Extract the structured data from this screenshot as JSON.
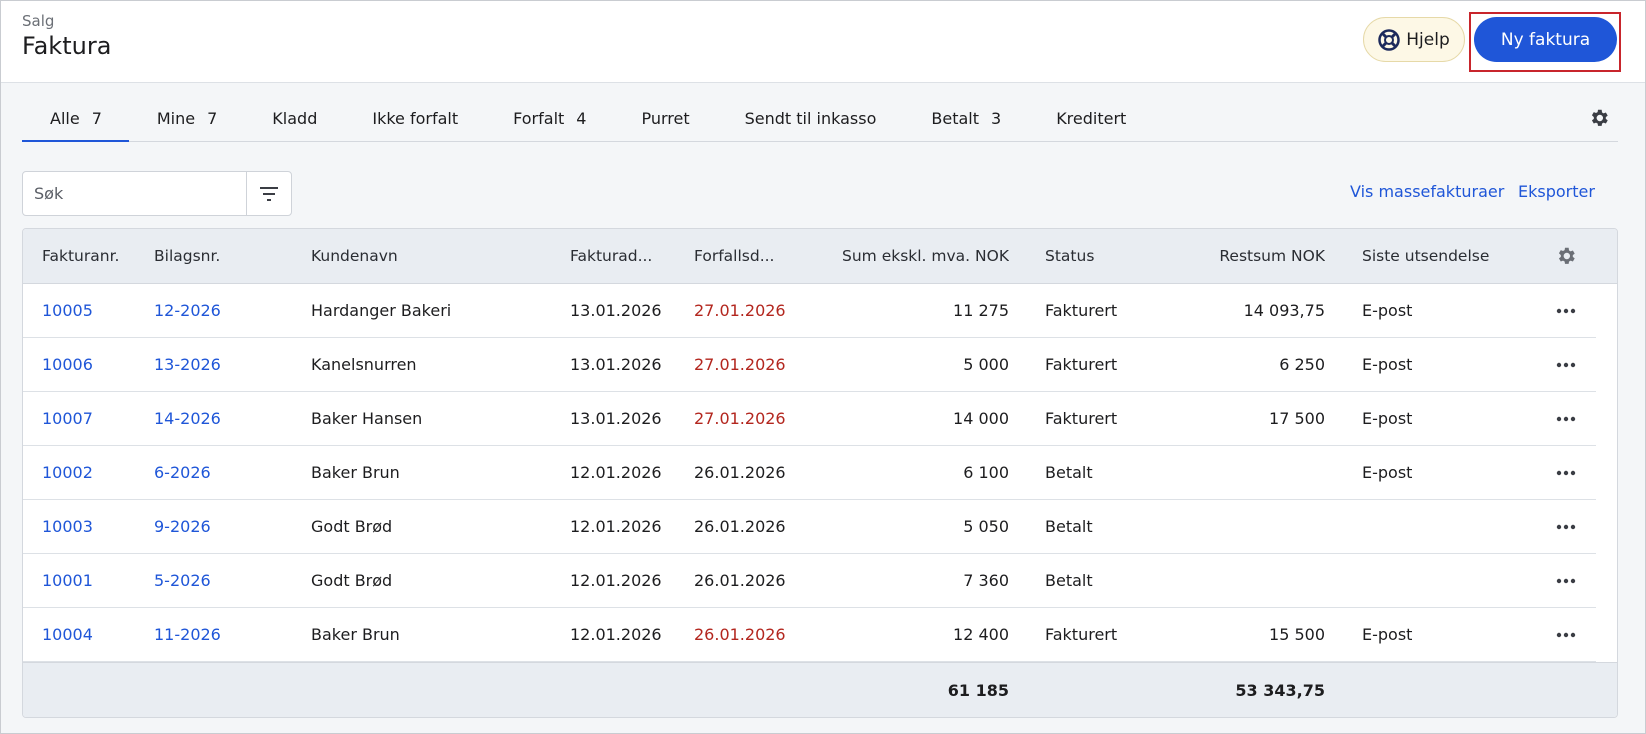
{
  "header": {
    "breadcrumb": "Salg",
    "title": "Faktura",
    "help_button": "Hjelp",
    "new_button": "Ny faktura"
  },
  "tabs": [
    {
      "label": "Alle",
      "count": "7"
    },
    {
      "label": "Mine",
      "count": "7"
    },
    {
      "label": "Kladd",
      "count": null
    },
    {
      "label": "Ikke forfalt",
      "count": null
    },
    {
      "label": "Forfalt",
      "count": "4"
    },
    {
      "label": "Purret",
      "count": null
    },
    {
      "label": "Sendt til inkasso",
      "count": null
    },
    {
      "label": "Betalt",
      "count": "3"
    },
    {
      "label": "Kreditert",
      "count": null
    }
  ],
  "toolbar": {
    "search_placeholder": "Søk",
    "links": [
      "Vis massefakturaer",
      "Eksporter"
    ]
  },
  "table": {
    "columns": [
      "Fakturanr.",
      "Bilagsnr.",
      "Kundenavn",
      "Fakturad...",
      "Forfallsd...",
      "Sum ekskl. mva. NOK",
      "Status",
      "Restsum NOK",
      "Siste utsendelse"
    ],
    "rows": [
      [
        "10005",
        "12-2026",
        "Hardanger Bakeri",
        "13.01.2026",
        "27.01.2026",
        "11 275",
        "Fakturert",
        "14 093,75",
        "E-post"
      ],
      [
        "10006",
        "13-2026",
        "Kanelsnurren",
        "13.01.2026",
        "27.01.2026",
        "5 000",
        "Fakturert",
        "6 250",
        "E-post"
      ],
      [
        "10007",
        "14-2026",
        "Baker Hansen",
        "13.01.2026",
        "27.01.2026",
        "14 000",
        "Fakturert",
        "17 500",
        "E-post"
      ],
      [
        "10002",
        "6-2026",
        "Baker Brun",
        "12.01.2026",
        "26.01.2026",
        "6 100",
        "Betalt",
        null,
        "E-post"
      ],
      [
        "10003",
        "9-2026",
        "Godt Brød",
        "12.01.2026",
        "26.01.2026",
        "5 050",
        "Betalt",
        null,
        null
      ],
      [
        "10001",
        "5-2026",
        "Godt Brød",
        "12.01.2026",
        "26.01.2026",
        "7 360",
        "Betalt",
        null,
        null
      ],
      [
        "10004",
        "11-2026",
        "Baker Brun",
        "12.01.2026",
        "26.01.2026",
        "12 400",
        "Fakturert",
        "15 500",
        "E-post"
      ]
    ],
    "due_colors": [
      "#b3261e",
      "#b3261e",
      "#b3261e",
      "#1d1d1f",
      "#1d1d1f",
      "#1d1d1f",
      "#b3261e"
    ],
    "totals": {
      "sum": "61 185",
      "restsum": "53 343,75"
    }
  }
}
